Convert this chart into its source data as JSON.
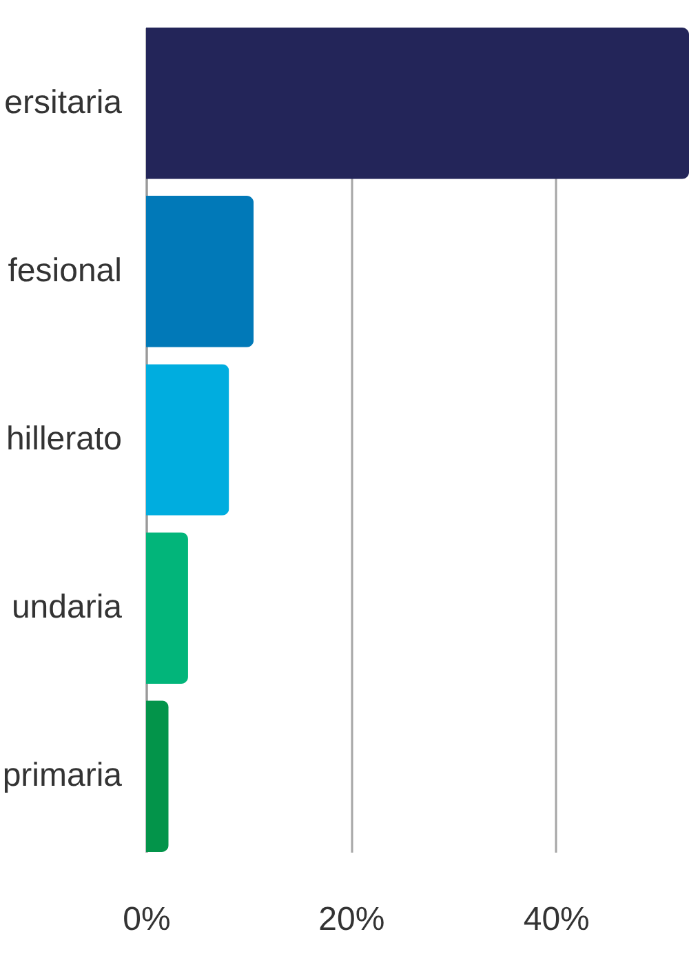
{
  "chart_data": {
    "type": "bar",
    "orientation": "horizontal",
    "categories": [
      "ersitaria",
      "fesional",
      "hillerato",
      "undaria",
      "primaria"
    ],
    "values": [
      53,
      10.5,
      8.1,
      4.1,
      2.2
    ],
    "colors": [
      "#232559",
      "#0179b8",
      "#00addf",
      "#02b57a",
      "#03944a"
    ],
    "xlim": [
      0,
      53
    ],
    "xticks": [
      {
        "value": 0,
        "label": "0%"
      },
      {
        "value": 20,
        "label": "20%"
      },
      {
        "value": 40,
        "label": "40%"
      }
    ],
    "grid": "x"
  }
}
